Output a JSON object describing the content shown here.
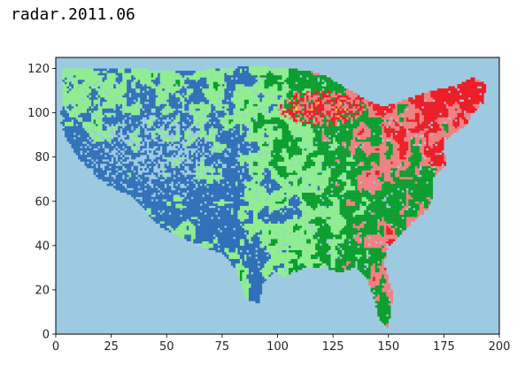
{
  "cell_output": {
    "text": "radar.2011.06"
  },
  "chart_data": {
    "type": "heatmap",
    "title": "",
    "xlabel": "",
    "ylabel": "",
    "xlim": [
      0,
      200
    ],
    "ylim": [
      0,
      125
    ],
    "origin": "lower",
    "grid": false,
    "xticks": [
      0,
      25,
      50,
      75,
      100,
      125,
      150,
      175,
      200
    ],
    "yticks": [
      0,
      20,
      40,
      60,
      80,
      100,
      120
    ],
    "background_value_color": "#9ecae1",
    "legend": "none",
    "colormap": [
      {
        "level": 0,
        "color": "#9ecae1"
      },
      {
        "level": 1,
        "color": "#3070b8"
      },
      {
        "level": 2,
        "color": "#90ee90"
      },
      {
        "level": 3,
        "color": "#0a9e2c"
      },
      {
        "level": 4,
        "color": "#f08080"
      },
      {
        "level": 5,
        "color": "#ee1c25"
      },
      {
        "level": 6,
        "color": "#ffd700"
      },
      {
        "level": 7,
        "color": "#7a1fa2"
      }
    ]
  }
}
